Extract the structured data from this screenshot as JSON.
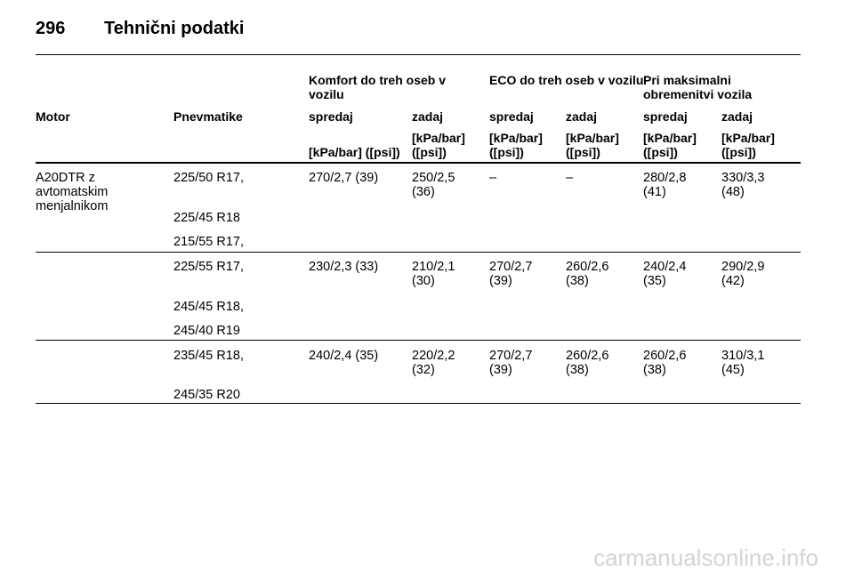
{
  "header": {
    "page_number": "296",
    "title": "Tehnični podatki"
  },
  "table": {
    "group_headers": [
      "Komfort do treh oseb v vozilu",
      "ECO do treh oseb v vozilu",
      "Pri maksimalni obremenitvi vozila"
    ],
    "columns": [
      "Motor",
      "Pnevmatike",
      "spredaj",
      "zadaj",
      "spredaj",
      "zadaj",
      "spredaj",
      "zadaj"
    ],
    "units": [
      "[kPa/bar] ([psi])",
      "[kPa/bar] ([psi])",
      "[kPa/bar] ([psi])",
      "[kPa/bar] ([psi])",
      "[kPa/bar] ([psi])",
      "[kPa/bar] ([psi])"
    ],
    "motor": "A20DTR z avtomatskim menjalnikom",
    "groups": [
      {
        "tires": [
          "225/50 R17,",
          "225/45 R18",
          "215/55 R17,"
        ],
        "pressures": [
          "270/2,7 (39)",
          "250/2,5 (36)",
          "–",
          "–",
          "280/2,8 (41)",
          "330/3,3 (48)"
        ]
      },
      {
        "tires": [
          "225/55 R17,",
          "245/45 R18,",
          "245/40 R19"
        ],
        "pressures": [
          "230/2,3 (33)",
          "210/2,1 (30)",
          "270/2,7 (39)",
          "260/2,6 (38)",
          "240/2,4 (35)",
          "290/2,9 (42)"
        ]
      },
      {
        "tires": [
          "235/45 R18,",
          "245/35 R20"
        ],
        "pressures": [
          "240/2,4 (35)",
          "220/2,2 (32)",
          "270/2,7 (39)",
          "260/2,6 (38)",
          "260/2,6 (38)",
          "310/3,1 (45)"
        ]
      }
    ]
  },
  "watermark": "carmanualsonline.info"
}
